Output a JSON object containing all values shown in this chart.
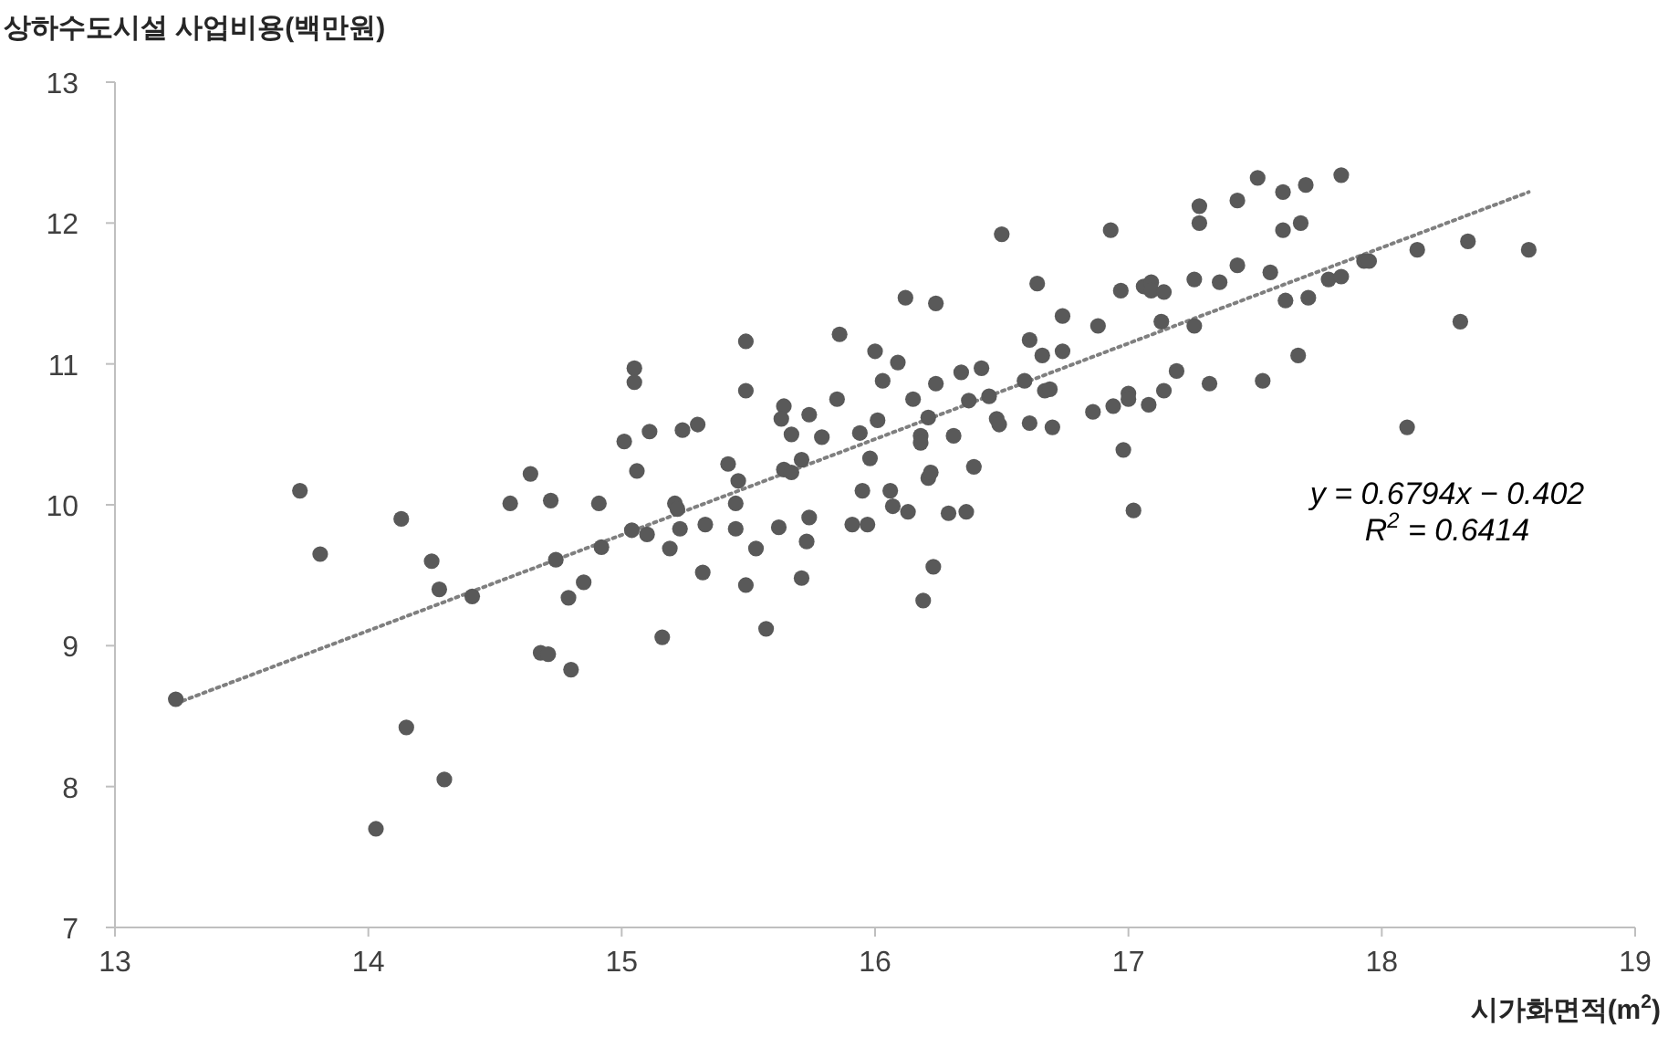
{
  "chart_data": {
    "type": "scatter",
    "ylabel": "상하수도시설 사업비용(백만원)",
    "xlabel": "시가화면적(m$^{2}$)",
    "xlim": [
      13,
      19
    ],
    "ylim": [
      7,
      13
    ],
    "xticks": [
      13,
      14,
      15,
      16,
      17,
      18,
      19
    ],
    "yticks": [
      7,
      8,
      9,
      10,
      11,
      12,
      13
    ],
    "annotations": [
      "y = 0.6794x − 0.402",
      "R$^{2}$ = 0.6414"
    ],
    "series": [
      {
        "type": "scatter",
        "color": "#595959",
        "marker": "circle",
        "x": [
          13.73,
          13.81,
          13.24,
          14.13,
          14.25,
          14.28,
          14.41,
          14.56,
          14.64,
          14.68,
          14.15,
          14.3,
          14.03,
          14.72,
          14.74,
          14.79,
          14.85,
          14.71,
          14.8,
          14.91,
          14.92,
          15.01,
          15.05,
          15.05,
          15.06,
          15.11,
          15.04,
          15.1,
          15.19,
          15.16,
          15.24,
          15.3,
          15.21,
          15.22,
          15.23,
          15.33,
          15.32,
          15.42,
          15.46,
          15.45,
          15.45,
          15.53,
          15.49,
          15.57,
          15.49,
          15.49,
          15.86,
          15.64,
          15.63,
          15.74,
          15.67,
          15.79,
          15.64,
          15.67,
          15.71,
          15.62,
          15.74,
          15.73,
          15.71,
          15.85,
          15.94,
          15.98,
          15.95,
          16.06,
          16.07,
          15.91,
          15.97,
          16.0,
          16.03,
          16.09,
          16.01,
          16.5,
          16.12,
          16.24,
          16.15,
          16.24,
          16.34,
          16.42,
          16.37,
          16.45,
          16.21,
          16.18,
          16.18,
          16.31,
          16.21,
          16.22,
          16.13,
          16.29,
          16.36,
          16.39,
          16.48,
          16.49,
          16.23,
          16.19,
          16.61,
          16.59,
          16.61,
          16.66,
          16.64,
          16.74,
          16.74,
          16.67,
          16.69,
          16.7,
          16.88,
          16.86,
          16.94,
          16.93,
          16.97,
          17.0,
          17.0,
          16.98,
          17.02,
          17.08,
          17.06,
          17.09,
          17.09,
          17.14,
          17.13,
          17.14,
          17.19,
          17.26,
          17.26,
          17.28,
          17.28,
          17.32,
          17.36,
          17.43,
          17.43,
          17.53,
          17.51,
          17.61,
          17.7,
          17.84,
          17.61,
          17.68,
          17.56,
          17.62,
          17.71,
          17.79,
          17.84,
          17.93,
          17.95,
          18.14,
          18.34,
          18.58,
          18.31,
          17.67,
          18.1
        ],
        "values": [
          10.1,
          9.65,
          8.62,
          9.9,
          9.6,
          9.4,
          9.35,
          10.01,
          10.22,
          8.95,
          8.42,
          8.05,
          7.7,
          10.03,
          9.61,
          9.34,
          9.45,
          8.94,
          8.83,
          10.01,
          9.7,
          10.45,
          10.97,
          10.87,
          10.24,
          10.52,
          9.82,
          9.79,
          9.69,
          9.06,
          10.53,
          10.57,
          10.01,
          9.97,
          9.83,
          9.86,
          9.52,
          10.29,
          10.17,
          10.01,
          9.83,
          9.69,
          9.43,
          9.12,
          11.16,
          10.81,
          11.21,
          10.7,
          10.61,
          10.64,
          10.5,
          10.48,
          10.25,
          10.23,
          10.32,
          9.84,
          9.91,
          9.74,
          9.48,
          10.75,
          10.51,
          10.33,
          10.1,
          10.1,
          9.99,
          9.86,
          9.86,
          11.09,
          10.88,
          11.01,
          10.6,
          11.92,
          11.47,
          11.43,
          10.75,
          10.86,
          10.94,
          10.97,
          10.74,
          10.77,
          10.62,
          10.49,
          10.44,
          10.49,
          10.19,
          10.23,
          9.95,
          9.94,
          9.95,
          10.27,
          10.61,
          10.57,
          9.56,
          9.32,
          10.58,
          10.88,
          11.17,
          11.06,
          11.57,
          11.34,
          11.09,
          10.81,
          10.82,
          10.55,
          11.27,
          10.66,
          10.7,
          11.95,
          11.52,
          10.79,
          10.75,
          10.39,
          9.96,
          10.71,
          11.55,
          11.58,
          11.52,
          11.51,
          11.3,
          10.81,
          10.95,
          11.27,
          11.6,
          12.0,
          12.12,
          10.86,
          11.58,
          11.7,
          12.16,
          10.88,
          12.32,
          12.22,
          12.27,
          12.34,
          11.95,
          12.0,
          11.65,
          11.45,
          11.47,
          11.6,
          11.62,
          11.73,
          11.73,
          11.81,
          11.87,
          11.81,
          11.3,
          11.06,
          10.55
        ]
      },
      {
        "type": "line",
        "color": "#7f7f7f",
        "marker": "none",
        "line_style": "dotted",
        "x": [
          13.24,
          18.58
        ],
        "values": [
          8.59,
          12.22
        ]
      }
    ]
  }
}
